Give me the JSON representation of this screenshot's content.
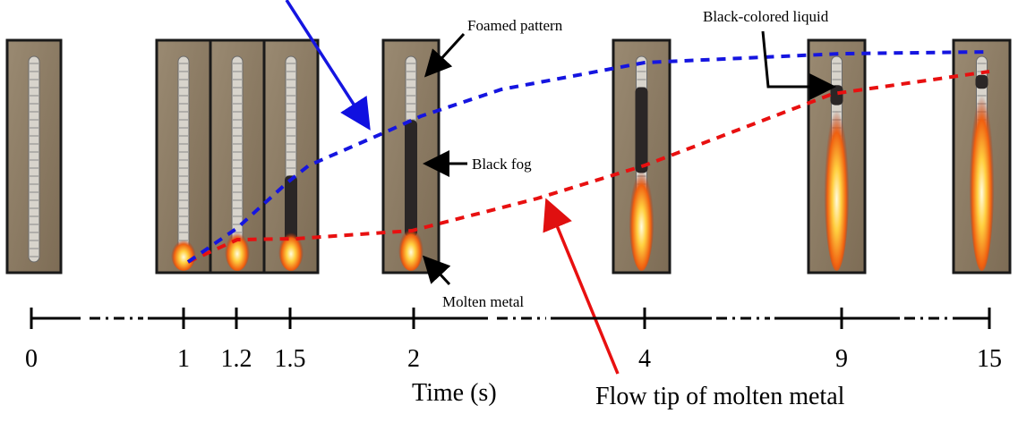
{
  "annotations": {
    "foamed_pattern": "Foamed pattern",
    "black_liquid": "Black-colored liquid",
    "black_fog": "Black fog",
    "molten_metal": "Molten metal",
    "flow_tip": "Flow tip of molten metal"
  },
  "timeline": {
    "ticks": [
      "0",
      "1",
      "1.2",
      "1.5",
      "2",
      "4",
      "9",
      "15"
    ],
    "label": "Time (s)"
  }
}
